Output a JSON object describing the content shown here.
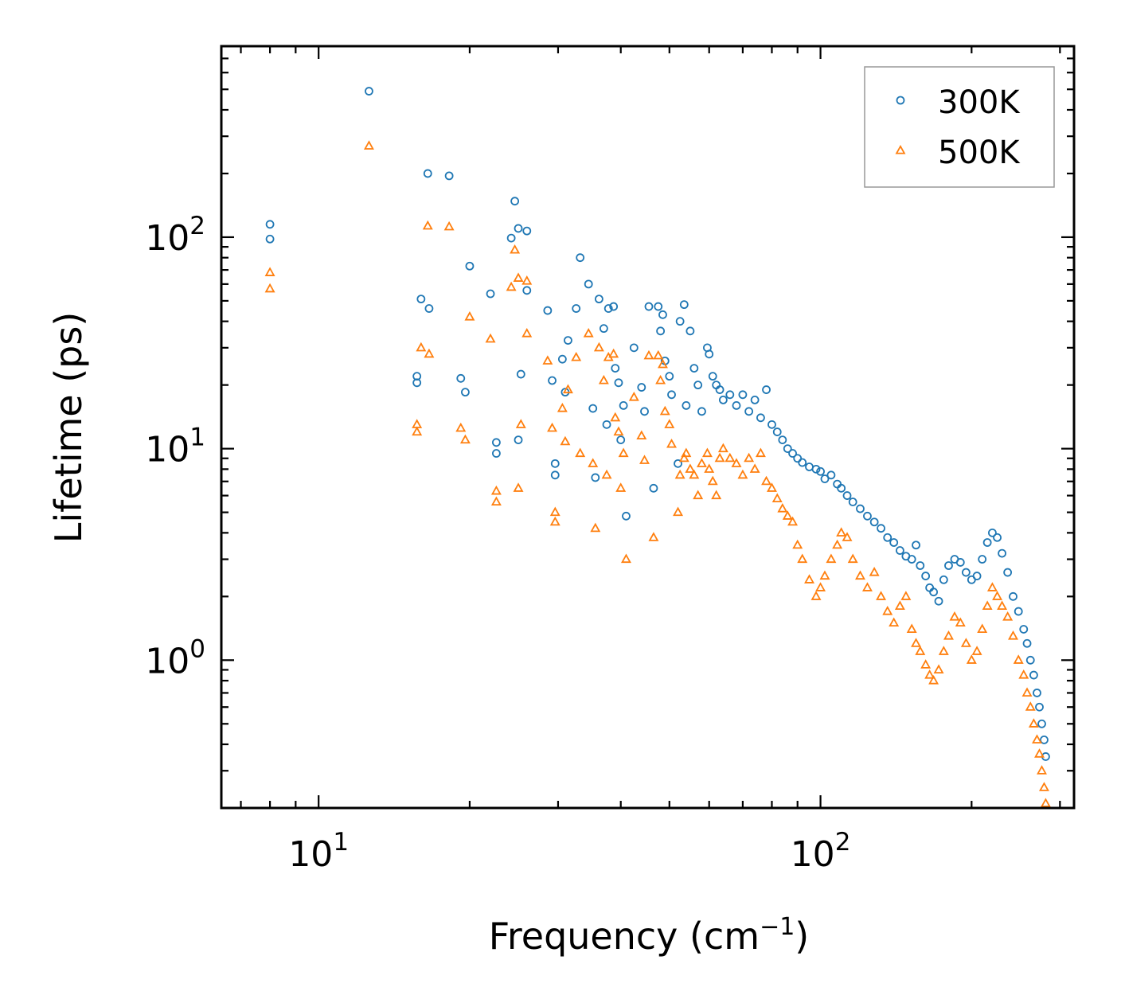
{
  "chart_data": {
    "type": "scatter",
    "title": "",
    "xlabel": "Frequency (cm",
    "xlabel_sup": "−1",
    "xlabel_close": ")",
    "ylabel": "Lifetime (ps)",
    "xscale": "log",
    "yscale": "log",
    "xlim": [
      6.4,
      320
    ],
    "ylim": [
      0.2,
      800
    ],
    "x_ticks": [
      {
        "value": 10,
        "base": "10",
        "exp": "1"
      },
      {
        "value": 100,
        "base": "10",
        "exp": "2"
      }
    ],
    "y_ticks": [
      {
        "value": 1,
        "base": "10",
        "exp": "0"
      },
      {
        "value": 10,
        "base": "10",
        "exp": "1"
      },
      {
        "value": 100,
        "base": "10",
        "exp": "2"
      }
    ],
    "legend_position": "top-right",
    "series": [
      {
        "name": "300K",
        "marker": "circle",
        "color": "#1f77b4",
        "points": [
          [
            8,
            115
          ],
          [
            8,
            98
          ],
          [
            12.6,
            490
          ],
          [
            16.5,
            200
          ],
          [
            18.2,
            195
          ],
          [
            15.7,
            22
          ],
          [
            15.7,
            20.5
          ],
          [
            16,
            51
          ],
          [
            16.6,
            46
          ],
          [
            20,
            73
          ],
          [
            19.2,
            21.5
          ],
          [
            19.6,
            18.5
          ],
          [
            22,
            54
          ],
          [
            22.6,
            10.7
          ],
          [
            22.6,
            9.5
          ],
          [
            24.2,
            99
          ],
          [
            24.6,
            148
          ],
          [
            25,
            110
          ],
          [
            26,
            107
          ],
          [
            26,
            56
          ],
          [
            25.3,
            22.5
          ],
          [
            25,
            11
          ],
          [
            28.6,
            45
          ],
          [
            29.2,
            21
          ],
          [
            29.6,
            8.5
          ],
          [
            29.6,
            7.5
          ],
          [
            30.6,
            26.5
          ],
          [
            31,
            18.5
          ],
          [
            31.4,
            32.5
          ],
          [
            32.6,
            46
          ],
          [
            33.2,
            80
          ],
          [
            34.5,
            60
          ],
          [
            35.2,
            15.5
          ],
          [
            35.6,
            7.3
          ],
          [
            36.2,
            51
          ],
          [
            37,
            37
          ],
          [
            37.8,
            46
          ],
          [
            38.7,
            47
          ],
          [
            39,
            24
          ],
          [
            37.5,
            13
          ],
          [
            39.6,
            20.5
          ],
          [
            40,
            11
          ],
          [
            40.5,
            16
          ],
          [
            41,
            4.8
          ],
          [
            42.5,
            30
          ],
          [
            44,
            19.5
          ],
          [
            44.6,
            15
          ],
          [
            45.5,
            47
          ],
          [
            46.5,
            6.5
          ],
          [
            47.5,
            47
          ],
          [
            48,
            36
          ],
          [
            48.5,
            43
          ],
          [
            49,
            26
          ],
          [
            50,
            22
          ],
          [
            50.5,
            18
          ],
          [
            52,
            8.5
          ],
          [
            52.5,
            40
          ],
          [
            53.5,
            48
          ],
          [
            54,
            16
          ],
          [
            55,
            36
          ],
          [
            56,
            24
          ],
          [
            57,
            20
          ],
          [
            58,
            15
          ],
          [
            59.5,
            30
          ],
          [
            60,
            28
          ],
          [
            61,
            22
          ],
          [
            62,
            20
          ],
          [
            63,
            19
          ],
          [
            64,
            17
          ],
          [
            66,
            18
          ],
          [
            68,
            16
          ],
          [
            70,
            18
          ],
          [
            72,
            15
          ],
          [
            74,
            17
          ],
          [
            76,
            14
          ],
          [
            78,
            19
          ],
          [
            80,
            13
          ],
          [
            82,
            12
          ],
          [
            84,
            11
          ],
          [
            86,
            10
          ],
          [
            88,
            9.5
          ],
          [
            90,
            9
          ],
          [
            92,
            8.6
          ],
          [
            95,
            8.2
          ],
          [
            98,
            8
          ],
          [
            100,
            7.8
          ],
          [
            102,
            7.2
          ],
          [
            105,
            7.5
          ],
          [
            108,
            6.8
          ],
          [
            110,
            6.5
          ],
          [
            113,
            6
          ],
          [
            116,
            5.6
          ],
          [
            120,
            5.2
          ],
          [
            124,
            4.8
          ],
          [
            128,
            4.5
          ],
          [
            132,
            4.2
          ],
          [
            136,
            3.8
          ],
          [
            140,
            3.6
          ],
          [
            144,
            3.3
          ],
          [
            148,
            3.1
          ],
          [
            152,
            3
          ],
          [
            155,
            3.5
          ],
          [
            158,
            2.8
          ],
          [
            162,
            2.5
          ],
          [
            165,
            2.2
          ],
          [
            168,
            2.1
          ],
          [
            172,
            1.9
          ],
          [
            176,
            2.4
          ],
          [
            180,
            2.8
          ],
          [
            185,
            3
          ],
          [
            190,
            2.9
          ],
          [
            195,
            2.6
          ],
          [
            200,
            2.4
          ],
          [
            205,
            2.5
          ],
          [
            210,
            3
          ],
          [
            215,
            3.6
          ],
          [
            220,
            4
          ],
          [
            225,
            3.8
          ],
          [
            230,
            3.2
          ],
          [
            236,
            2.6
          ],
          [
            242,
            2
          ],
          [
            248,
            1.7
          ],
          [
            254,
            1.4
          ],
          [
            258,
            1.2
          ],
          [
            262,
            1
          ],
          [
            266,
            0.85
          ],
          [
            270,
            0.7
          ],
          [
            273,
            0.6
          ],
          [
            276,
            0.5
          ],
          [
            279,
            0.42
          ],
          [
            281,
            0.35
          ]
        ]
      },
      {
        "name": "500K",
        "marker": "triangle",
        "color": "#ff7f0e",
        "points": [
          [
            8,
            68
          ],
          [
            8,
            57
          ],
          [
            12.6,
            270
          ],
          [
            16.5,
            113
          ],
          [
            18.2,
            112
          ],
          [
            15.7,
            13
          ],
          [
            15.7,
            12
          ],
          [
            16,
            30
          ],
          [
            16.6,
            28
          ],
          [
            20,
            42
          ],
          [
            19.2,
            12.5
          ],
          [
            19.6,
            11
          ],
          [
            22,
            33
          ],
          [
            22.6,
            6.3
          ],
          [
            22.6,
            5.6
          ],
          [
            24.2,
            58
          ],
          [
            24.6,
            87
          ],
          [
            25,
            64
          ],
          [
            26,
            62
          ],
          [
            26,
            35
          ],
          [
            25.3,
            13
          ],
          [
            25,
            6.5
          ],
          [
            28.6,
            26
          ],
          [
            29.2,
            12.5
          ],
          [
            29.6,
            5
          ],
          [
            29.6,
            4.5
          ],
          [
            30.6,
            15.5
          ],
          [
            31,
            10.8
          ],
          [
            31.4,
            19
          ],
          [
            32.6,
            27
          ],
          [
            33.2,
            9.5
          ],
          [
            34.5,
            35
          ],
          [
            35.2,
            8.5
          ],
          [
            35.6,
            4.2
          ],
          [
            36.2,
            30
          ],
          [
            37,
            21
          ],
          [
            37.8,
            27
          ],
          [
            38.7,
            28
          ],
          [
            39,
            14
          ],
          [
            37.5,
            7.5
          ],
          [
            39.6,
            12
          ],
          [
            40,
            6.5
          ],
          [
            40.5,
            9.5
          ],
          [
            41,
            3
          ],
          [
            42.5,
            17.5
          ],
          [
            44,
            11.5
          ],
          [
            44.6,
            8.8
          ],
          [
            45.5,
            27.5
          ],
          [
            46.5,
            3.8
          ],
          [
            47.5,
            27.5
          ],
          [
            48,
            21
          ],
          [
            48.5,
            25
          ],
          [
            49,
            15
          ],
          [
            50,
            13
          ],
          [
            50.5,
            10.5
          ],
          [
            52,
            5
          ],
          [
            52.5,
            7.5
          ],
          [
            53.5,
            9
          ],
          [
            54,
            9.5
          ],
          [
            55,
            8
          ],
          [
            56,
            7.5
          ],
          [
            57,
            6
          ],
          [
            58,
            8.5
          ],
          [
            59.5,
            9.5
          ],
          [
            60,
            8
          ],
          [
            61,
            7
          ],
          [
            62,
            6
          ],
          [
            63,
            9
          ],
          [
            64,
            10
          ],
          [
            66,
            9
          ],
          [
            68,
            8.5
          ],
          [
            70,
            7.5
          ],
          [
            72,
            9
          ],
          [
            74,
            8
          ],
          [
            76,
            9.5
          ],
          [
            78,
            7
          ],
          [
            80,
            6.5
          ],
          [
            82,
            5.8
          ],
          [
            84,
            5.2
          ],
          [
            86,
            4.8
          ],
          [
            88,
            4.5
          ],
          [
            90,
            3.5
          ],
          [
            92,
            3
          ],
          [
            95,
            2.4
          ],
          [
            98,
            2
          ],
          [
            100,
            2.2
          ],
          [
            102,
            2.5
          ],
          [
            105,
            3
          ],
          [
            108,
            3.5
          ],
          [
            110,
            4
          ],
          [
            113,
            3.8
          ],
          [
            116,
            3
          ],
          [
            120,
            2.5
          ],
          [
            124,
            2.2
          ],
          [
            128,
            2.6
          ],
          [
            132,
            2
          ],
          [
            136,
            1.7
          ],
          [
            140,
            1.5
          ],
          [
            144,
            1.8
          ],
          [
            148,
            2
          ],
          [
            152,
            1.4
          ],
          [
            155,
            1.2
          ],
          [
            158,
            1.1
          ],
          [
            162,
            0.95
          ],
          [
            165,
            0.85
          ],
          [
            168,
            0.8
          ],
          [
            172,
            0.9
          ],
          [
            176,
            1.1
          ],
          [
            180,
            1.3
          ],
          [
            185,
            1.6
          ],
          [
            190,
            1.5
          ],
          [
            195,
            1.2
          ],
          [
            200,
            1
          ],
          [
            205,
            1.1
          ],
          [
            210,
            1.4
          ],
          [
            215,
            1.8
          ],
          [
            220,
            2.2
          ],
          [
            225,
            2
          ],
          [
            230,
            1.8
          ],
          [
            236,
            1.6
          ],
          [
            242,
            1.3
          ],
          [
            248,
            1
          ],
          [
            254,
            0.85
          ],
          [
            258,
            0.7
          ],
          [
            262,
            0.6
          ],
          [
            266,
            0.5
          ],
          [
            270,
            0.42
          ],
          [
            273,
            0.36
          ],
          [
            276,
            0.3
          ],
          [
            279,
            0.25
          ],
          [
            281,
            0.21
          ]
        ]
      }
    ]
  }
}
